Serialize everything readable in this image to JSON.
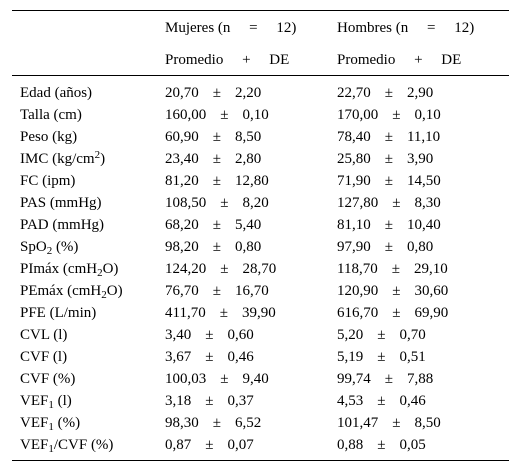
{
  "header": {
    "group1": "Mujeres (n     =     12)",
    "group2": "Hombres (n     =     12)",
    "sub1": "Promedio     +     DE",
    "sub2": "Promedio     +     DE"
  },
  "pm": "±",
  "rows": [
    {
      "label": "Edad (años)",
      "m1": "20,70",
      "sd1": "2,20",
      "m2": "22,70",
      "sd2": "2,90"
    },
    {
      "label": "Talla (cm)",
      "m1": "160,00",
      "sd1": "0,10",
      "m2": "170,00",
      "sd2": "0,10"
    },
    {
      "label": "Peso (kg)",
      "m1": "60,90",
      "sd1": "8,50",
      "m2": "78,40",
      "sd2": "11,10"
    },
    {
      "label_pre": "IMC (kg/cm",
      "label_sup": "2",
      "label_post": ")",
      "m1": "23,40",
      "sd1": "2,80",
      "m2": "25,80",
      "sd2": "3,90"
    },
    {
      "label": "FC (ipm)",
      "m1": "81,20",
      "sd1": "12,80",
      "m2": "71,90",
      "sd2": "14,50"
    },
    {
      "label": "PAS (mmHg)",
      "m1": "108,50",
      "sd1": "8,20",
      "m2": "127,80",
      "sd2": "8,30"
    },
    {
      "label": "PAD (mmHg)",
      "m1": "68,20",
      "sd1": "5,40",
      "m2": "81,10",
      "sd2": "10,40"
    },
    {
      "label_pre": "SpO",
      "label_sub": "2",
      "label_post": " (%)",
      "m1": "98,20",
      "sd1": "0,80",
      "m2": "97,90",
      "sd2": "0,80"
    },
    {
      "label_pre": "PImáx (cmH",
      "label_sub": "2",
      "label_post": "O)",
      "m1": "124,20",
      "sd1": "28,70",
      "m2": "118,70",
      "sd2": "29,10"
    },
    {
      "label_pre": "PEmáx (cmH",
      "label_sub": "2",
      "label_post": "O)",
      "m1": "76,70",
      "sd1": "16,70",
      "m2": "120,90",
      "sd2": "30,60"
    },
    {
      "label": "PFE (L/min)",
      "m1": "411,70",
      "sd1": "39,90",
      "m2": "616,70",
      "sd2": "69,90"
    },
    {
      "label": "CVL (l)",
      "m1": "3,40",
      "sd1": "0,60",
      "m2": "5,20",
      "sd2": "0,70"
    },
    {
      "label": "CVF (l)",
      "m1": "3,67",
      "sd1": "0,46",
      "m2": "5,19",
      "sd2": "0,51"
    },
    {
      "label": "CVF (%)",
      "m1": "100,03",
      "sd1": "9,40",
      "m2": "99,74",
      "sd2": "7,88"
    },
    {
      "label_pre": "VEF",
      "label_sub": "1",
      "label_post": " (l)",
      "m1": "3,18",
      "sd1": "0,37",
      "m2": "4,53",
      "sd2": "0,46"
    },
    {
      "label_pre": "VEF",
      "label_sub": "1",
      "label_post": " (%)",
      "m1": "98,30",
      "sd1": "6,52",
      "m2": "101,47",
      "sd2": "8,50"
    },
    {
      "label_pre": "VEF",
      "label_sub": "1",
      "label_post": "/CVF (%)",
      "m1": "0,87",
      "sd1": "0,07",
      "m2": "0,88",
      "sd2": "0,05"
    }
  ]
}
